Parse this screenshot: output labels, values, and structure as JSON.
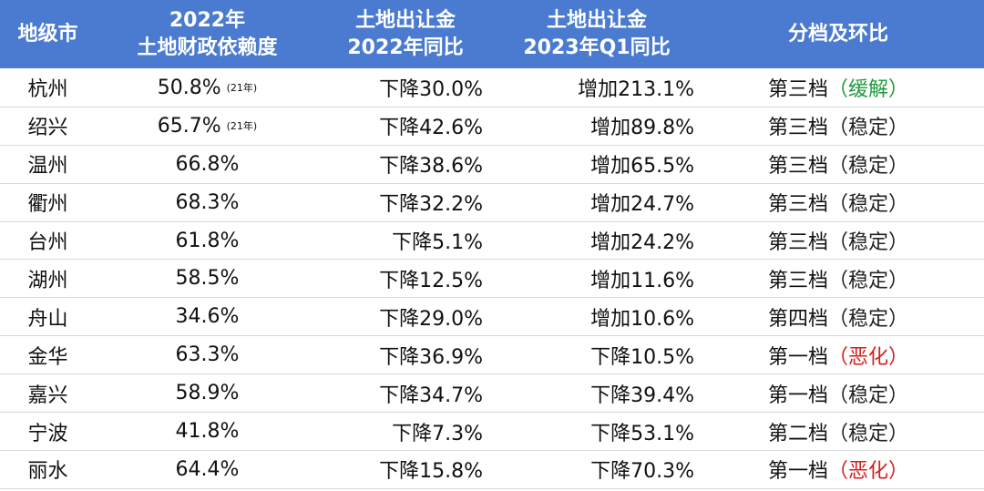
{
  "table": {
    "headers": [
      [
        "地级市"
      ],
      [
        "2022年",
        "土地财政依赖度"
      ],
      [
        "土地出让金",
        "2022年同比"
      ],
      [
        "土地出让金",
        "2023年Q1同比"
      ],
      [
        "分档及环比"
      ]
    ],
    "rows": [
      {
        "city": "杭州",
        "dependency": "50.8%",
        "dependency_note": "(21年)",
        "land_2022": "下降30.0%",
        "land_2023q1": "增加213.1%",
        "tier": "第三档",
        "status": "（缓解）",
        "status_color": "#1f9a3c"
      },
      {
        "city": "绍兴",
        "dependency": "65.7%",
        "dependency_note": "(21年)",
        "land_2022": "下降42.6%",
        "land_2023q1": "增加89.8%",
        "tier": "第三档",
        "status": "（稳定）",
        "status_color": "#222222"
      },
      {
        "city": "温州",
        "dependency": "66.8%",
        "land_2022": "下降38.6%",
        "land_2023q1": "增加65.5%",
        "tier": "第三档",
        "status": "（稳定）",
        "status_color": "#222222"
      },
      {
        "city": "衢州",
        "dependency": "68.3%",
        "land_2022": "下降32.2%",
        "land_2023q1": "增加24.7%",
        "tier": "第三档",
        "status": "（稳定）",
        "status_color": "#222222"
      },
      {
        "city": "台州",
        "dependency": "61.8%",
        "land_2022": "下降5.1%",
        "land_2023q1": "增加24.2%",
        "tier": "第三档",
        "status": "（稳定）",
        "status_color": "#222222"
      },
      {
        "city": "湖州",
        "dependency": "58.5%",
        "land_2022": "下降12.5%",
        "land_2023q1": "增加11.6%",
        "tier": "第三档",
        "status": "（稳定）",
        "status_color": "#222222"
      },
      {
        "city": "舟山",
        "dependency": "34.6%",
        "land_2022": "下降29.0%",
        "land_2023q1": "增加10.6%",
        "tier": "第四档",
        "status": "（稳定）",
        "status_color": "#222222"
      },
      {
        "city": "金华",
        "dependency": "63.3%",
        "land_2022": "下降36.9%",
        "land_2023q1": "下降10.5%",
        "tier": "第一档",
        "status": "（恶化）",
        "status_color": "#d3201f"
      },
      {
        "city": "嘉兴",
        "dependency": "58.9%",
        "land_2022": "下降34.7%",
        "land_2023q1": "下降39.4%",
        "tier": "第一档",
        "status": "（稳定）",
        "status_color": "#222222"
      },
      {
        "city": "宁波",
        "dependency": "41.8%",
        "land_2022": "下降7.3%",
        "land_2023q1": "下降53.1%",
        "tier": "第二档",
        "status": "（稳定）",
        "status_color": "#222222"
      },
      {
        "city": "丽水",
        "dependency": "64.4%",
        "land_2022": "下降15.8%",
        "land_2023q1": "下降70.3%",
        "tier": "第一档",
        "status": "（恶化）",
        "status_color": "#d3201f"
      }
    ]
  }
}
